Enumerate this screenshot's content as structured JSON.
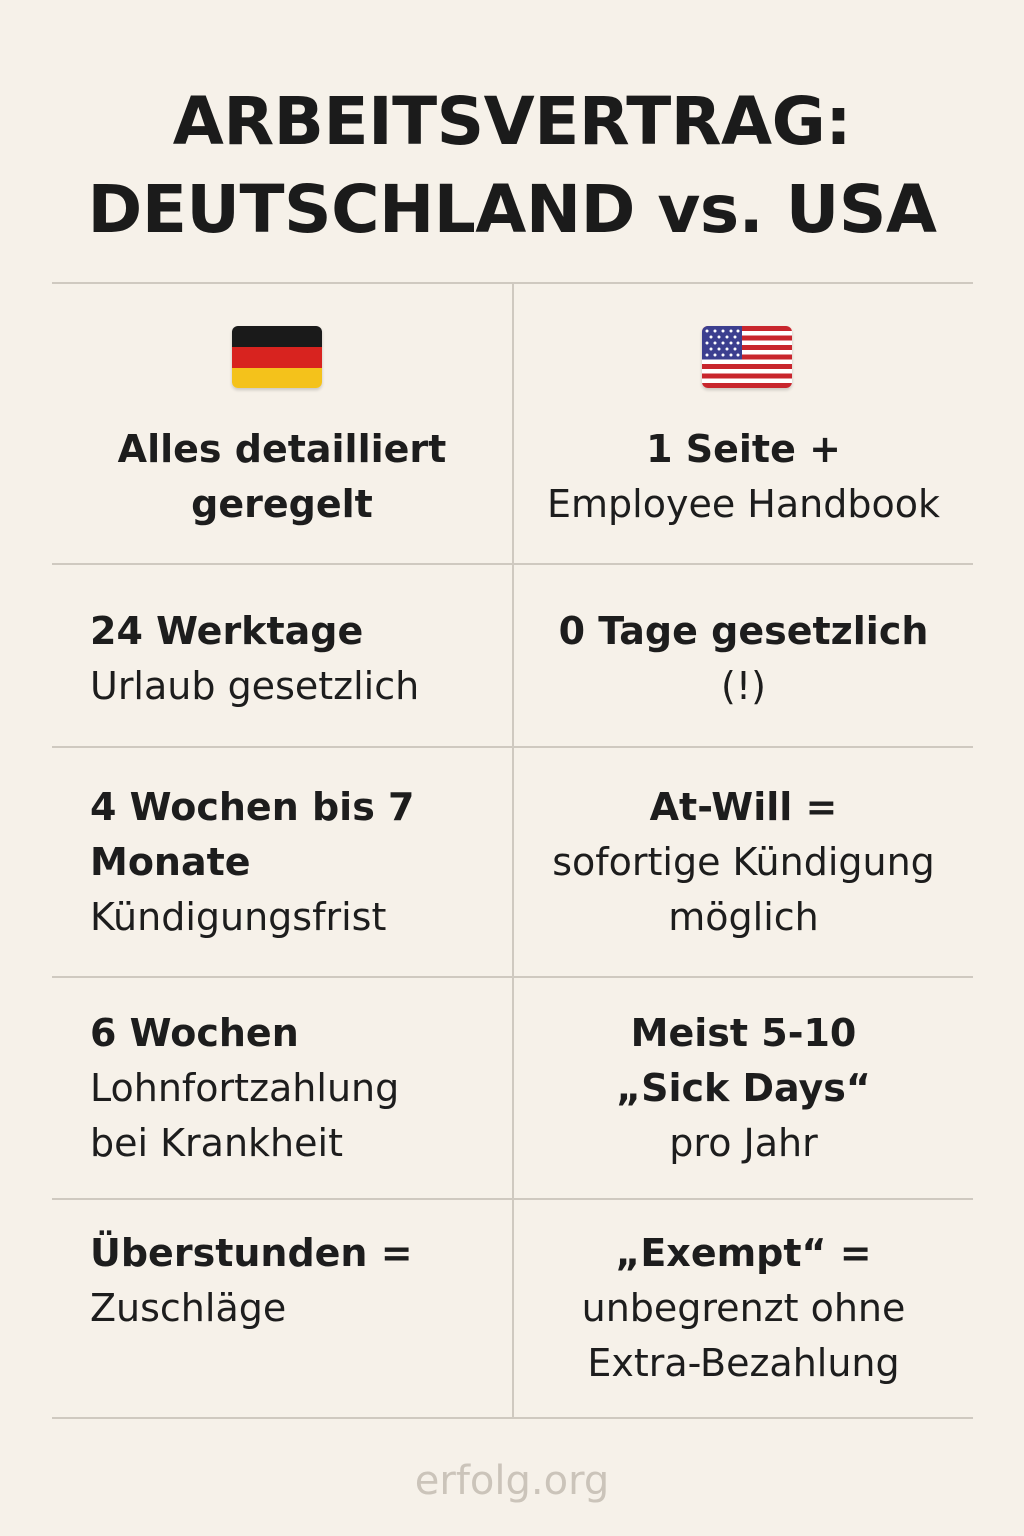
{
  "title": {
    "line1": "ARBEITSVERTRAG:",
    "line2": "DEUTSCHLAND vs. USA"
  },
  "columns": {
    "left_flag": "flag-germany-icon",
    "right_flag": "flag-usa-icon"
  },
  "rows": [
    {
      "left": {
        "bold": "Alles detailliert",
        "bold2": "geregelt"
      },
      "right": {
        "bold": "1 Seite +",
        "normal": "Employee Handbook"
      }
    },
    {
      "left": {
        "bold": "24 Werktage",
        "normal": "Urlaub gesetzlich"
      },
      "right": {
        "bold": "0 Tage gesetzlich",
        "normal": "(!)"
      }
    },
    {
      "left": {
        "bold": "4 Wochen bis 7",
        "bold2": "Monate",
        "normal": "Kündigungsfrist"
      },
      "right": {
        "bold": "At-Will =",
        "normal": "sofortige Kündigung",
        "normal2": "möglich"
      }
    },
    {
      "left": {
        "bold": "6 Wochen",
        "normal": "Lohnfortzahlung",
        "normal2": "bei Krankheit"
      },
      "right": {
        "bold": "Meist 5-10",
        "bold2": "„Sick Days“",
        "normal": "pro Jahr"
      }
    },
    {
      "left": {
        "bold": "Überstunden =",
        "normal": "Zuschläge"
      },
      "right": {
        "bold": "„Exempt“ =",
        "normal": "unbegrenzt ohne",
        "normal2": "Extra-Bezahlung"
      }
    }
  ],
  "footer": "erfolg.org",
  "colors": {
    "background": "#f6f1e9",
    "text": "#1d1d1d",
    "divider": "#cfc9c0",
    "footer": "#cbc4ba"
  }
}
